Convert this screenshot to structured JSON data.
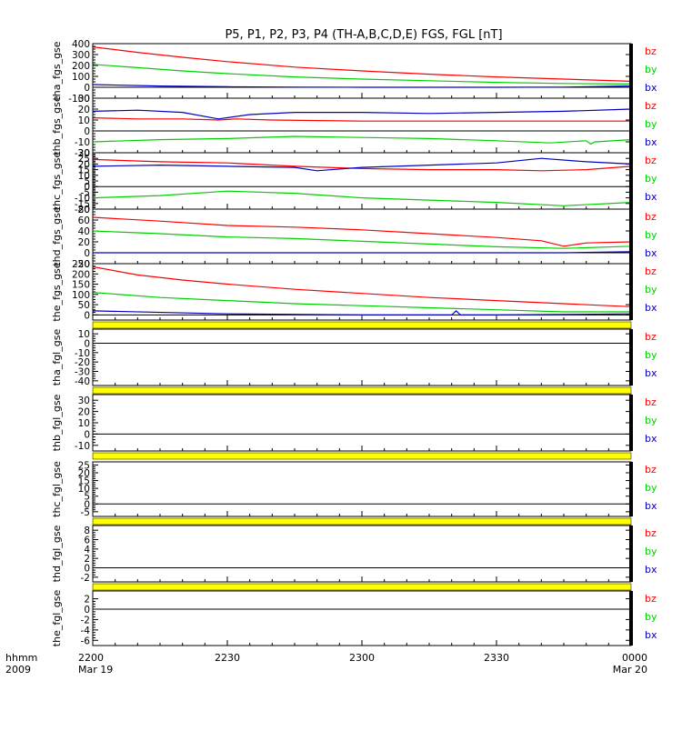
{
  "title": "P5, P1, P2, P3, P4 (TH-A,B,C,D,E) FGS, FGL [nT]",
  "colors": {
    "bz": "#ff0000",
    "by": "#00d000",
    "bx": "#0000c0",
    "gap": "#ffff00",
    "axis": "#000000"
  },
  "legend_labels": [
    "bz",
    "by",
    "bx"
  ],
  "x_axis": {
    "row1_label": "hhmm",
    "row2_label": "2009",
    "ticks": [
      {
        "value": 0,
        "label": "2200",
        "sub": "Mar 19"
      },
      {
        "value": 30,
        "label": "2230",
        "sub": ""
      },
      {
        "value": 60,
        "label": "2300",
        "sub": ""
      },
      {
        "value": 90,
        "label": "2330",
        "sub": ""
      },
      {
        "value": 120,
        "label": "0000",
        "sub": "Mar 20"
      }
    ],
    "range": [
      0,
      120
    ]
  },
  "chart_data": [
    {
      "type": "line",
      "ylabel": "tha_fgs_gse",
      "ylim": [
        -100,
        400
      ],
      "yticks": [
        -100,
        0,
        100,
        200,
        300,
        400
      ],
      "gap_bar": false,
      "series": [
        {
          "name": "bz",
          "x": [
            0,
            10,
            20,
            30,
            45,
            60,
            75,
            90,
            105,
            120
          ],
          "values": [
            370,
            320,
            275,
            235,
            185,
            150,
            120,
            95,
            75,
            55
          ]
        },
        {
          "name": "by",
          "x": [
            0,
            10,
            20,
            30,
            45,
            60,
            75,
            90,
            105,
            120
          ],
          "values": [
            210,
            180,
            150,
            125,
            95,
            75,
            60,
            45,
            35,
            30
          ]
        },
        {
          "name": "bx",
          "x": [
            0,
            15,
            30,
            45,
            60,
            75,
            90,
            105,
            120
          ],
          "values": [
            25,
            12,
            5,
            2,
            0,
            0,
            0,
            2,
            12
          ]
        }
      ]
    },
    {
      "type": "line",
      "ylabel": "thb_fgs_gse",
      "ylim": [
        -20,
        30
      ],
      "yticks": [
        -20,
        -10,
        0,
        10,
        20,
        30
      ],
      "gap_bar": false,
      "series": [
        {
          "name": "bz",
          "x": [
            0,
            10,
            20,
            28,
            32,
            40,
            60,
            80,
            100,
            120
          ],
          "values": [
            12,
            11,
            11,
            10,
            11,
            10,
            9,
            9,
            9,
            9
          ]
        },
        {
          "name": "by",
          "x": [
            0,
            15,
            30,
            45,
            60,
            75,
            90,
            102,
            110,
            111,
            112,
            120
          ],
          "values": [
            -10,
            -8,
            -7,
            -5,
            -6,
            -7,
            -9,
            -11,
            -9,
            -12,
            -10,
            -8
          ]
        },
        {
          "name": "bx",
          "x": [
            0,
            10,
            20,
            28,
            35,
            45,
            60,
            75,
            90,
            105,
            120
          ],
          "values": [
            18,
            19,
            17,
            11,
            15,
            17,
            17,
            16,
            17,
            18,
            20
          ]
        }
      ]
    },
    {
      "type": "line",
      "ylabel": "thc_fgs_gse",
      "ylim": [
        -20,
        30
      ],
      "yticks": [
        -20,
        -15,
        -10,
        -5,
        0,
        5,
        10,
        15,
        20,
        25,
        30
      ],
      "gap_bar": false,
      "series": [
        {
          "name": "bz",
          "x": [
            0,
            15,
            30,
            45,
            60,
            75,
            90,
            100,
            110,
            120
          ],
          "values": [
            24,
            22,
            21,
            18,
            16,
            15,
            15,
            14,
            15,
            18
          ]
        },
        {
          "name": "by",
          "x": [
            0,
            15,
            30,
            45,
            60,
            75,
            90,
            105,
            120
          ],
          "values": [
            -10,
            -8,
            -4,
            -6,
            -10,
            -12,
            -14,
            -17,
            -14
          ]
        },
        {
          "name": "bx",
          "x": [
            0,
            15,
            30,
            45,
            50,
            60,
            75,
            90,
            100,
            110,
            120
          ],
          "values": [
            18,
            19,
            18,
            17,
            14,
            17,
            19,
            21,
            25,
            22,
            20
          ]
        }
      ]
    },
    {
      "type": "line",
      "ylabel": "thd_fgs_gse",
      "ylim": [
        -20,
        80
      ],
      "yticks": [
        -20,
        0,
        20,
        40,
        60,
        80
      ],
      "gap_bar": false,
      "series": [
        {
          "name": "bz",
          "x": [
            0,
            15,
            30,
            45,
            60,
            75,
            90,
            100,
            105,
            110,
            120
          ],
          "values": [
            65,
            58,
            50,
            47,
            42,
            35,
            28,
            22,
            12,
            18,
            20
          ]
        },
        {
          "name": "by",
          "x": [
            0,
            15,
            30,
            45,
            60,
            75,
            90,
            105,
            120
          ],
          "values": [
            40,
            35,
            29,
            26,
            21,
            16,
            11,
            8,
            12
          ]
        },
        {
          "name": "bx",
          "x": [
            0,
            30,
            60,
            90,
            105,
            120
          ],
          "values": [
            0,
            0,
            0,
            0,
            0,
            2
          ]
        }
      ]
    },
    {
      "type": "line",
      "ylabel": "the_fgs_gse",
      "ylim": [
        -25,
        250
      ],
      "yticks": [
        0,
        50,
        100,
        150,
        200,
        250
      ],
      "gap_bar": true,
      "series": [
        {
          "name": "bz",
          "x": [
            0,
            10,
            20,
            30,
            45,
            60,
            75,
            90,
            105,
            120
          ],
          "values": [
            235,
            195,
            170,
            150,
            125,
            105,
            85,
            70,
            55,
            40
          ]
        },
        {
          "name": "by",
          "x": [
            0,
            15,
            30,
            45,
            60,
            75,
            90,
            105,
            120
          ],
          "values": [
            110,
            85,
            70,
            55,
            45,
            35,
            25,
            15,
            15
          ]
        },
        {
          "name": "bx",
          "x": [
            0,
            30,
            60,
            80,
            81,
            82,
            90,
            105,
            120
          ],
          "values": [
            20,
            5,
            0,
            0,
            20,
            0,
            0,
            2,
            5
          ]
        }
      ]
    },
    {
      "type": "line",
      "ylabel": "tha_fgl_gse",
      "ylim": [
        -45,
        15
      ],
      "yticks": [
        -40,
        -30,
        -20,
        -10,
        0,
        10
      ],
      "gap_bar": true,
      "series": []
    },
    {
      "type": "line",
      "ylabel": "thb_fgl_gse",
      "ylim": [
        -15,
        35
      ],
      "yticks": [
        -10,
        0,
        10,
        20,
        30
      ],
      "gap_bar": true,
      "series": []
    },
    {
      "type": "line",
      "ylabel": "thc_fgl_gse",
      "ylim": [
        -8,
        27
      ],
      "yticks": [
        -5,
        0,
        5,
        10,
        15,
        20,
        25
      ],
      "gap_bar": true,
      "series": []
    },
    {
      "type": "line",
      "ylabel": "thd_fgl_gse",
      "ylim": [
        -3,
        9
      ],
      "yticks": [
        -2,
        0,
        2,
        4,
        6,
        8
      ],
      "gap_bar": true,
      "series": []
    },
    {
      "type": "line",
      "ylabel": "the_fgl_gse",
      "ylim": [
        -7,
        3.5
      ],
      "yticks": [
        -6,
        -4,
        -2,
        0,
        2
      ],
      "gap_bar": false,
      "series": []
    }
  ]
}
